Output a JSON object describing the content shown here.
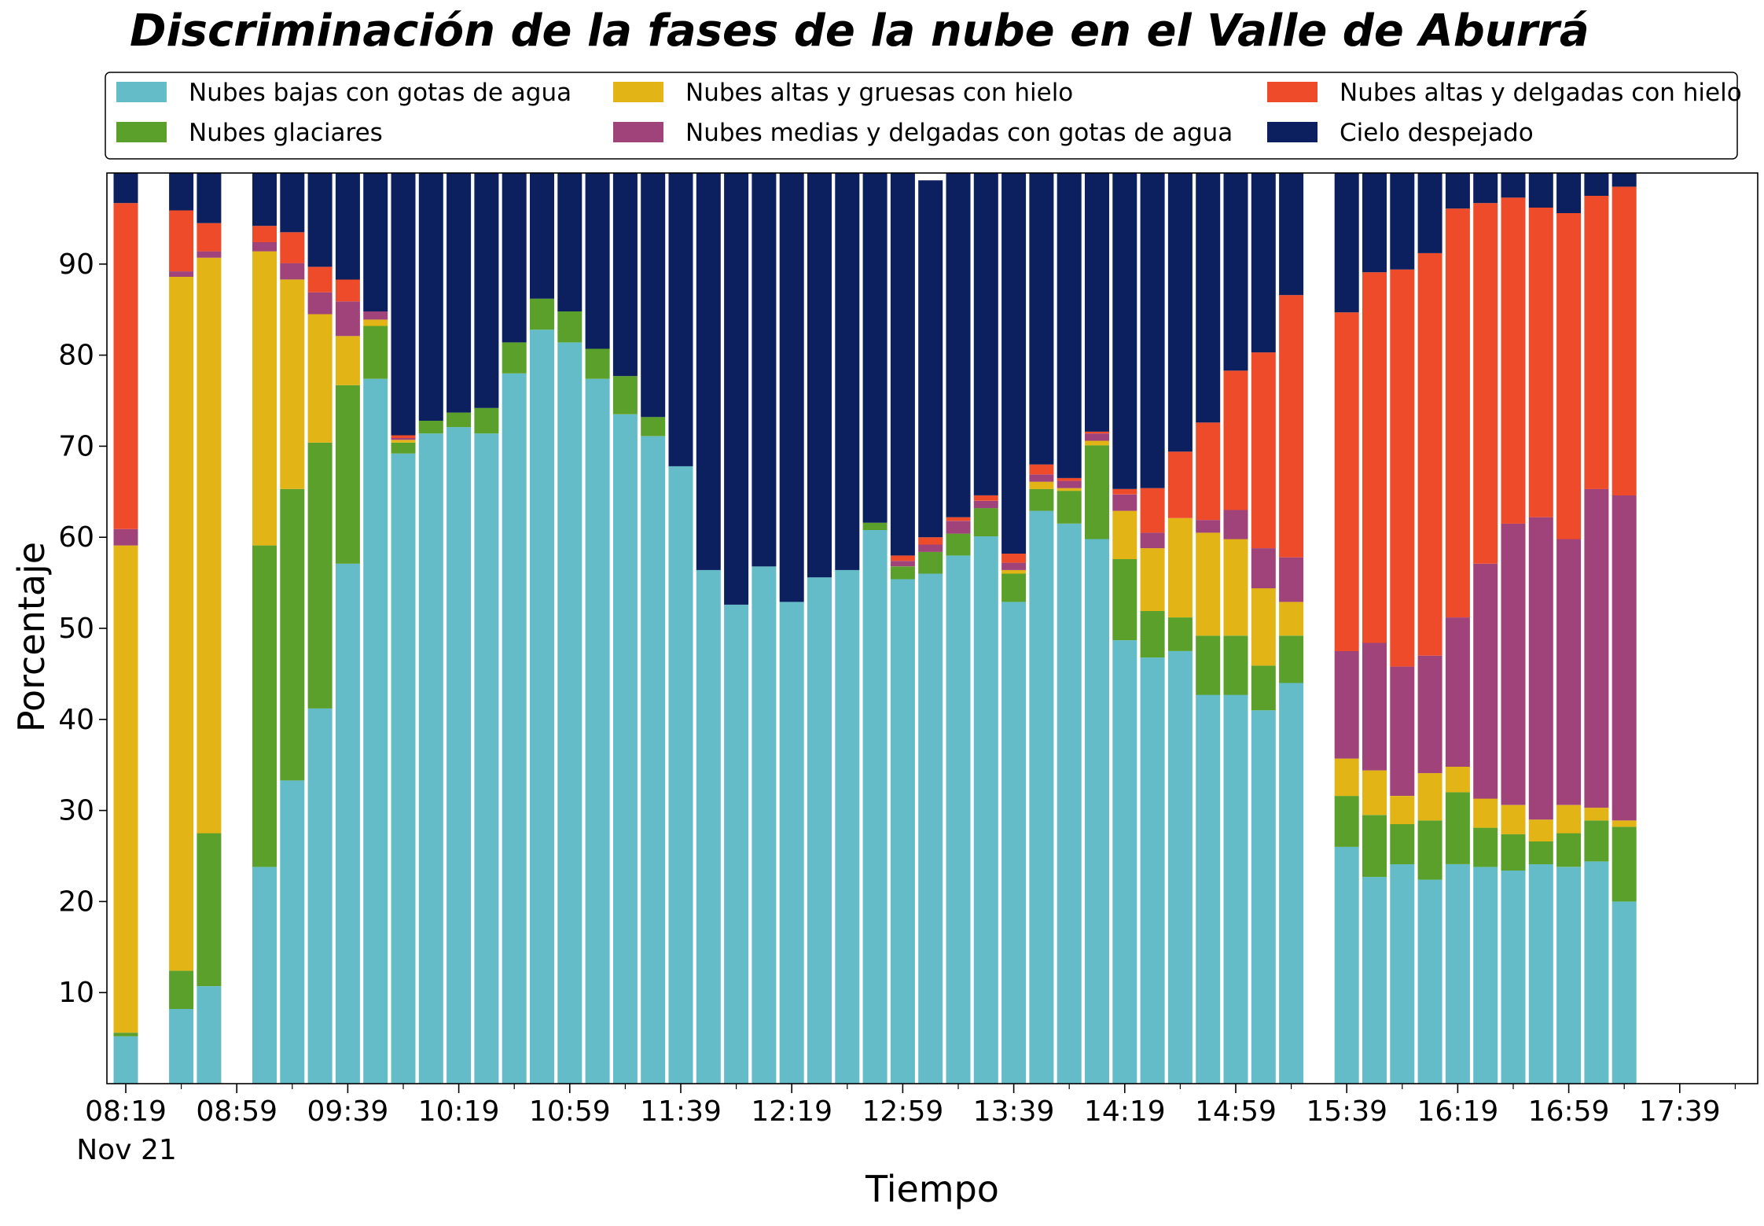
{
  "chart_data": {
    "type": "bar",
    "stacked": true,
    "title": "Discriminación de la fases de la nube en el Valle de Aburrá",
    "xlabel": "Tiempo",
    "ylabel": "Porcentaje",
    "ylim": [
      0,
      100
    ],
    "yticks": [
      10,
      20,
      30,
      40,
      50,
      60,
      70,
      80,
      90
    ],
    "xtick_labels": [
      "08:19",
      "08:59",
      "09:39",
      "10:19",
      "10:59",
      "11:39",
      "12:19",
      "12:59",
      "13:39",
      "14:19",
      "14:59",
      "15:39",
      "16:19",
      "16:59",
      "17:39"
    ],
    "xtick_sublabel": "Nov 21",
    "grid": false,
    "legend_position": "top",
    "x": [
      "08:19",
      "08:29",
      "08:39",
      "08:49",
      "08:59",
      "09:09",
      "09:19",
      "09:29",
      "09:39",
      "09:49",
      "09:59",
      "10:09",
      "10:19",
      "10:29",
      "10:39",
      "10:49",
      "10:59",
      "11:09",
      "11:19",
      "11:29",
      "11:39",
      "11:49",
      "11:59",
      "12:09",
      "12:19",
      "12:29",
      "12:39",
      "12:49",
      "12:59",
      "13:09",
      "13:19",
      "13:29",
      "13:39",
      "13:49",
      "13:59",
      "14:09",
      "14:19",
      "14:29",
      "14:39",
      "14:49",
      "14:59",
      "15:09",
      "15:19",
      "15:29",
      "15:39",
      "15:49",
      "15:59",
      "16:09",
      "16:19",
      "16:29",
      "16:39",
      "16:49",
      "16:59",
      "17:09",
      "17:19",
      "17:29",
      "17:39",
      "17:49",
      "17:59"
    ],
    "series": [
      {
        "name": "Nubes bajas con gotas de agua",
        "color": "#64BCC8",
        "values": [
          5.2,
          0,
          8.2,
          10.7,
          0,
          23.8,
          33.3,
          41.2,
          57.1,
          77.4,
          69.2,
          71.4,
          72.1,
          71.4,
          78.0,
          82.8,
          81.4,
          77.4,
          73.5,
          71.1,
          67.8,
          56.4,
          52.6,
          56.8,
          52.9,
          55.6,
          56.4,
          60.8,
          55.4,
          56.0,
          58.0,
          60.1,
          52.9,
          62.9,
          61.5,
          59.8,
          48.7,
          46.8,
          47.5,
          42.7,
          42.7,
          41.0,
          44.0,
          0,
          26.0,
          22.7,
          24.1,
          22.4,
          24.1,
          23.8,
          23.4,
          24.1,
          23.8,
          24.4,
          20.0,
          0,
          0,
          0,
          0
        ]
      },
      {
        "name": "Nubes glaciares",
        "color": "#5BA02A",
        "values": [
          0.4,
          0,
          4.2,
          16.8,
          0,
          35.3,
          32.0,
          29.2,
          19.6,
          5.8,
          1.2,
          1.4,
          1.6,
          2.8,
          3.4,
          3.4,
          3.4,
          3.3,
          4.2,
          2.1,
          0,
          0,
          0,
          0,
          0,
          0,
          0,
          0.8,
          1.4,
          2.4,
          2.4,
          3.1,
          3.1,
          2.4,
          3.6,
          10.3,
          8.9,
          5.1,
          3.7,
          6.5,
          6.5,
          4.9,
          5.2,
          0,
          5.6,
          6.8,
          4.4,
          6.5,
          7.9,
          4.3,
          4.0,
          2.5,
          3.7,
          4.5,
          8.2,
          0,
          0,
          0,
          0
        ]
      },
      {
        "name": "Nubes altas y gruesas con hielo",
        "color": "#E2B416",
        "values": [
          53.5,
          0,
          76.2,
          63.2,
          0,
          32.3,
          23.0,
          14.1,
          5.4,
          0.7,
          0.3,
          0,
          0,
          0,
          0,
          0,
          0,
          0,
          0,
          0,
          0,
          0,
          0,
          0,
          0,
          0,
          0,
          0,
          0,
          0,
          0,
          0,
          0.4,
          0.8,
          0.3,
          0.5,
          5.3,
          6.9,
          10.9,
          11.3,
          10.6,
          8.5,
          3.7,
          0,
          4.1,
          4.9,
          3.1,
          5.2,
          2.8,
          3.2,
          3.2,
          2.4,
          3.1,
          1.4,
          0.7,
          0,
          0,
          0,
          0
        ]
      },
      {
        "name": "Nubes medias y delgadas con gotas de agua",
        "color": "#A0437A",
        "values": [
          1.8,
          0,
          0.6,
          0.7,
          0,
          1.0,
          1.8,
          2.4,
          3.8,
          0.9,
          0.2,
          0,
          0,
          0,
          0,
          0,
          0,
          0,
          0,
          0,
          0,
          0,
          0,
          0,
          0,
          0,
          0,
          0,
          0.6,
          0.8,
          1.4,
          0.8,
          0.8,
          0.8,
          0.8,
          0.8,
          1.8,
          1.7,
          0,
          1.4,
          3.2,
          4.4,
          4.9,
          0,
          11.8,
          14.0,
          14.2,
          12.9,
          16.4,
          25.8,
          30.9,
          33.2,
          29.2,
          35.0,
          35.7,
          0,
          0,
          0,
          0
        ]
      },
      {
        "name": "Nubes altas y delgadas con hielo",
        "color": "#EE4B2B",
        "values": [
          35.8,
          0,
          6.7,
          3.1,
          0,
          1.8,
          3.4,
          2.8,
          2.4,
          0,
          0.3,
          0,
          0,
          0,
          0,
          0,
          0,
          0,
          0,
          0,
          0,
          0,
          0,
          0,
          0,
          0,
          0,
          0,
          0.6,
          0.8,
          0.4,
          0.6,
          1.0,
          1.1,
          0.3,
          0.2,
          0.6,
          4.9,
          7.3,
          10.7,
          15.3,
          21.5,
          28.8,
          0,
          37.2,
          40.7,
          43.6,
          44.2,
          44.9,
          39.6,
          35.8,
          34.0,
          35.8,
          32.2,
          33.9,
          0,
          0,
          0,
          0
        ]
      },
      {
        "name": "Cielo despejado",
        "color": "#0C1F5E",
        "values": [
          3.3,
          0,
          4.1,
          5.5,
          0,
          5.8,
          6.5,
          10.3,
          11.7,
          15.2,
          28.8,
          27.2,
          26.3,
          25.8,
          18.6,
          13.8,
          15.2,
          19.3,
          22.3,
          26.8,
          32.2,
          43.6,
          47.4,
          43.2,
          47.1,
          44.4,
          43.6,
          38.4,
          42.0,
          39.2,
          37.8,
          35.4,
          41.8,
          32.6,
          33.5,
          28.4,
          34.7,
          34.6,
          30.6,
          27.4,
          21.7,
          19.7,
          13.4,
          0,
          15.3,
          10.9,
          10.6,
          8.8,
          3.9,
          3.3,
          2.7,
          3.8,
          4.4,
          2.5,
          1.5,
          0,
          0,
          0,
          0
        ]
      }
    ]
  }
}
